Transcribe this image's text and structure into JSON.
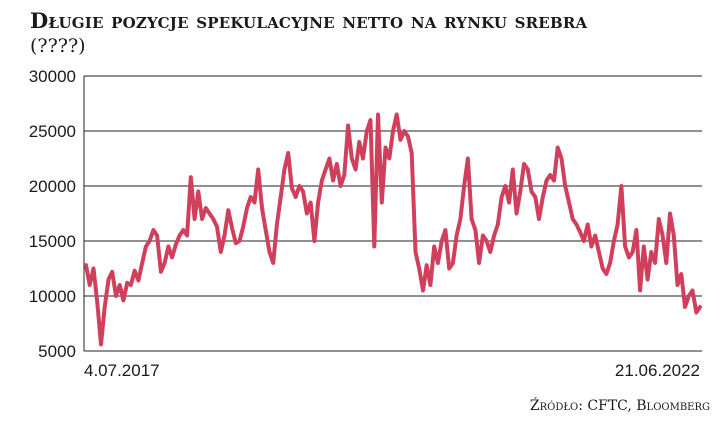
{
  "chart_data": {
    "type": "line",
    "title": "Długie pozycje spekulacyjne netto na rynku srebra",
    "subtitle": "(????)",
    "ylim": [
      5000,
      30000
    ],
    "yticks": [
      "30000",
      "25000",
      "20000",
      "15000",
      "10000",
      "5000"
    ],
    "x_start_label": "4.07.2017",
    "x_end_label": "21.06.2022",
    "grid": true,
    "series_color": "#d0405c",
    "series": [
      {
        "values": [
          12800,
          11000,
          12500,
          9500,
          5600,
          9000,
          11500,
          12200,
          10000,
          11000,
          9600,
          11200,
          11000,
          12300,
          11400,
          13000,
          14500,
          15000,
          16000,
          15500,
          12200,
          13000,
          14500,
          13500,
          14700,
          15500,
          16000,
          15500,
          20800,
          17000,
          19500,
          17000,
          18000,
          17500,
          17000,
          16300,
          14000,
          15500,
          17800,
          16200,
          14800,
          15000,
          16300,
          18000,
          19000,
          18500,
          21500,
          18000,
          16000,
          14000,
          13000,
          16500,
          19000,
          21500,
          23000,
          19800,
          19000,
          20000,
          19500,
          17500,
          18500,
          15000,
          18500,
          20500,
          21500,
          22500,
          20500,
          22000,
          20000,
          21000,
          25500,
          22500,
          21500,
          24000,
          22500,
          25000,
          26000,
          14500,
          26500,
          18500,
          23500,
          22500,
          25000,
          26500,
          24200,
          25000,
          24500,
          23000,
          14000,
          12500,
          10500,
          12800,
          11000,
          14500,
          13000,
          15000,
          16000,
          12500,
          13000,
          15500,
          17000,
          20000,
          22500,
          17000,
          16000,
          13000,
          15500,
          15000,
          14000,
          15500,
          16500,
          19000,
          20000,
          18500,
          21500,
          17500,
          19500,
          22000,
          21500,
          19500,
          19000,
          17000,
          19000,
          20500,
          21000,
          20500,
          23500,
          22500,
          20000,
          18500,
          17000,
          16500,
          15800,
          15000,
          16500,
          14500,
          15500,
          14000,
          12500,
          12000,
          13000,
          15000,
          16500,
          20000,
          14500,
          13500,
          14000,
          16000,
          10500,
          14500,
          11500,
          14000,
          13000,
          17000,
          15500,
          13000,
          17500,
          15500,
          11000,
          12000,
          9000,
          10000,
          10500,
          8500,
          9000
        ]
      }
    ]
  }
}
